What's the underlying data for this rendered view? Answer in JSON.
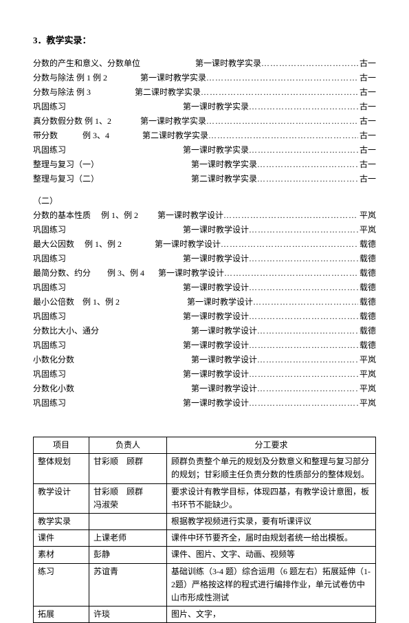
{
  "title": "3．教学实录：",
  "section1": [
    {
      "topic": "分数的产生和意义、分数单位",
      "gap": 80,
      "lesson": "第一课时教学实录",
      "author": "古一"
    },
    {
      "topic": "分数与除法 例 1 例 2",
      "gap": 48,
      "lesson": "第一课时教学实录",
      "author": "古一"
    },
    {
      "topic": "分数与除法 例 3",
      "gap": 64,
      "lesson": "第二课时教学实录",
      "author": "古一"
    },
    {
      "topic": "巩固练习",
      "gap": 170,
      "lesson": "第一课时教学实录",
      "author": "古一"
    },
    {
      "topic": "真分数假分数 例 1、2",
      "gap": 42,
      "lesson": "第一课时教学实录",
      "author": "古一"
    },
    {
      "topic": "带分数　　　例 3、4",
      "gap": 48,
      "lesson": "第二课时教学实录",
      "author": "古一"
    },
    {
      "topic": "巩固练习",
      "gap": 170,
      "lesson": "第一课时教学实录",
      "author": "古一"
    },
    {
      "topic": "整理与复习（一）",
      "gap": 134,
      "lesson": "第一课时教学实录",
      "author": "古一"
    },
    {
      "topic": "整理与复习（二）",
      "gap": 134,
      "lesson": "第二课时教学实录",
      "author": "古一"
    }
  ],
  "subhead": "（二）",
  "section2": [
    {
      "topic": "分数的基本性质　 例 1、例 2",
      "gap": 28,
      "lesson": "第一课时教学设计",
      "author": "平岚"
    },
    {
      "topic": "巩固练习",
      "gap": 170,
      "lesson": "第一课时教学设计",
      "author": " 平岚"
    },
    {
      "topic": "最大公因数　 例 1、例 2",
      "gap": 48,
      "lesson": "第一课时教学设计",
      "author": "载德"
    },
    {
      "topic": "巩固练习",
      "gap": 170,
      "lesson": "第一课时教学设计",
      "author": "载德"
    },
    {
      "topic": "最简分数、约分　　例 3、例 4",
      "gap": 20,
      "lesson": "第一课时教学设计",
      "author": "载德"
    },
    {
      "topic": "巩固练习",
      "gap": 170,
      "lesson": "第一课时教学设计",
      "author": "载德"
    },
    {
      "topic": "最小公倍数　例 1、例 2",
      "gap": 98,
      "lesson": "第一课时教学设计",
      "author": "载德"
    },
    {
      "topic": "巩固练习",
      "gap": 170,
      "lesson": "第一课时教学设计",
      "author": "载德"
    },
    {
      "topic": "分数比大小、通分",
      "gap": 134,
      "lesson": "第一课时教学设计",
      "author": "载德"
    },
    {
      "topic": "巩固练习",
      "gap": 170,
      "lesson": "第一课时教学设计",
      "author": "载德"
    },
    {
      "topic": "小数化分数",
      "gap": 170,
      "lesson": "第一课时教学设计",
      "author": "平岚"
    },
    {
      "topic": "巩固练习",
      "gap": 170,
      "lesson": "第一课时教学设计",
      "author": "平岚"
    },
    {
      "topic": "分数化小数",
      "gap": 170,
      "lesson": "第一课时教学设计",
      "author": "平岚"
    },
    {
      "topic": "巩固练习",
      "gap": 170,
      "lesson": "第一课时教学设计",
      "author": "平岚"
    }
  ],
  "table": {
    "headers": [
      "项目",
      "负责人",
      "分工要求"
    ],
    "rows": [
      [
        "整体规划",
        "甘彩顺　顾群",
        "顾群负责整个单元的规划及分数意义和整理与复习部分的规划；甘彩顺主任负责分数的性质部分的整体规划。"
      ],
      [
        "教学设计",
        "甘彩顺　顾群<br>冯淑荣",
        "要求设计有教学目标，体现四基，有教学设计意图，板书环节不能缺少。"
      ],
      [
        "教学实录",
        "",
        "根据教学视频进行实录，要有听课评议"
      ],
      [
        "课件",
        "上课老师",
        "课件中环节要齐全，届时由规划者统一给出模板。"
      ],
      [
        "素材",
        "彭静",
        "课件、图片、文字、动画、视频等"
      ],
      [
        "练习",
        "苏谊青",
        "基础训练（3-4 题）综合运用（6 题左右）拓展延伸（1-2题）严格按这样的程式进行编排作业，单元试卷仿中山市形成性测试"
      ],
      [
        "拓展",
        "许琰",
        "图片、文字，"
      ]
    ]
  }
}
